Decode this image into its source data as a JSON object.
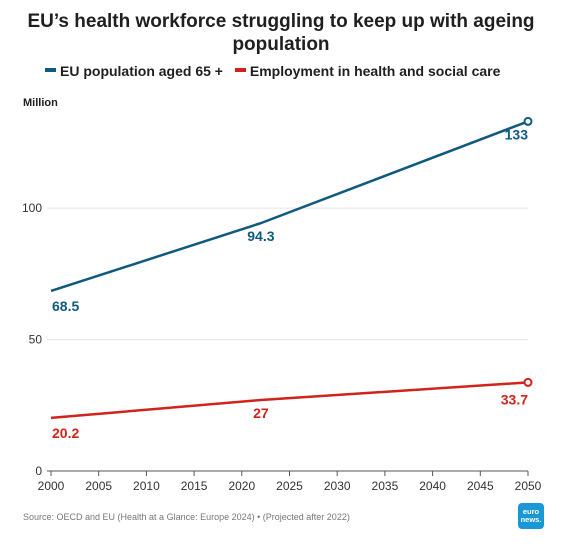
{
  "title": "EU’s health workforce struggling to keep up with ageing population",
  "legend": [
    {
      "label": "EU population aged 65 +",
      "color": "#0f5a7e"
    },
    {
      "label": "Employment in health and social care",
      "color": "#d0231c"
    }
  ],
  "unit_label": "Million",
  "source": "Source: OECD and EU (Health at a Glance: Europe 2024) • (Projected after 2022)",
  "logo": {
    "line1": "euro",
    "line2": "news."
  },
  "chart_data": {
    "type": "line",
    "title": "EU’s health workforce struggling to keep up with ageing population",
    "ylabel": "Million",
    "xlabel": "",
    "xlim": [
      2000,
      2050
    ],
    "ylim": [
      0,
      140
    ],
    "x_ticks": [
      2000,
      2005,
      2010,
      2015,
      2020,
      2025,
      2030,
      2035,
      2040,
      2045,
      2050
    ],
    "y_ticks": [
      0,
      50,
      100
    ],
    "grid": true,
    "legend_position": "top-left",
    "series": [
      {
        "name": "EU population aged 65 +",
        "color": "#0f5a7e",
        "x": [
          2000,
          2022,
          2050
        ],
        "values": [
          68.5,
          94.3,
          133
        ],
        "labels": [
          "68.5",
          "94.3",
          "133"
        ]
      },
      {
        "name": "Employment in health and social care",
        "color": "#d0231c",
        "x": [
          2000,
          2022,
          2050
        ],
        "values": [
          20.2,
          27,
          33.7
        ],
        "labels": [
          "20.2",
          "27",
          "33.7"
        ]
      }
    ]
  }
}
